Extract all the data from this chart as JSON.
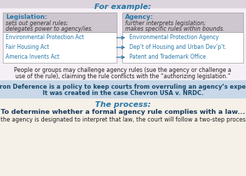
{
  "top_strip_color": "#ddd5dd",
  "white_bg": "#f5f0f5",
  "box_header_color": "#cfc7cf",
  "box_border_color": "#999999",
  "blue_header": "#2878a8",
  "blue_text": "#2878a8",
  "chevron_bg": "#c8d8e8",
  "chevron_text_color": "#1a4a6a",
  "bottom_bg": "#f5f0e8",
  "for_example": "For example:",
  "leg_title": "Legislation:",
  "leg_line1": "sets out general rules;",
  "leg_line2": "delegates power to agency/ies.",
  "ag_title": "Agency:",
  "ag_line1": "further interprets legislation;",
  "ag_line2": "makes specific rules within bounds.",
  "acts": [
    "Environmental Protection Act",
    "Fair Housing Act",
    "America Invents Act"
  ],
  "agencies": [
    "Environmental Protection Agency",
    "Dep’t of Housing and Urban Dev’p’t.",
    "Patent and Trademark Office"
  ],
  "challenge_line1": "People or groups may challenge agency rules (sue the agency or challenge a",
  "challenge_line2": "use of the rule), claiming the rule conflicts with the “authorizing legislation.”",
  "chev_line1_bold": "Chevron Deference",
  "chev_line1_rest": " is a policy to keep courts from overruling an agency’s expertise.",
  "chev_line2_pre": "It was created in the case ",
  "chev_line2_italic": "Chevron USA v. NRDC",
  "chev_line2_end": ".",
  "process_title": "The process:",
  "process_bold": "To determine whether a formal agency rule complies with a law...",
  "process_sub": "If the agency is designated to interpret that law, the court will follow a two-step process:"
}
